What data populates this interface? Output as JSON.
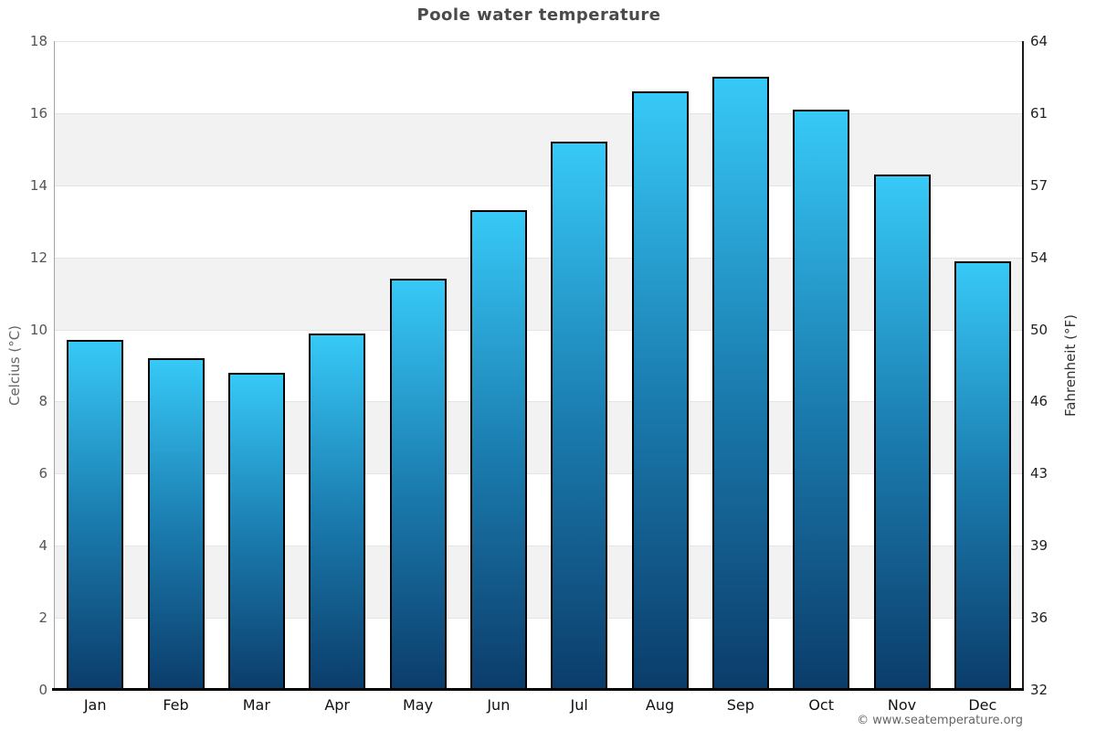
{
  "chart_data": {
    "type": "bar",
    "title": "Poole water temperature",
    "categories": [
      "Jan",
      "Feb",
      "Mar",
      "Apr",
      "May",
      "Jun",
      "Jul",
      "Aug",
      "Sep",
      "Oct",
      "Nov",
      "Dec"
    ],
    "values": [
      9.7,
      9.2,
      8.8,
      9.9,
      11.4,
      13.3,
      15.2,
      16.6,
      17.0,
      16.1,
      14.3,
      11.9
    ],
    "unit": "°C",
    "ylim": [
      0,
      18
    ],
    "grid": "alternating-bands",
    "legend": "none",
    "y_axis_left": {
      "label": "Celcius (°C)",
      "ticks": [
        0,
        2,
        4,
        6,
        8,
        10,
        12,
        14,
        16,
        18
      ]
    },
    "y_axis_right": {
      "label": "Fahrenheit (°F)",
      "ticks": [
        {
          "celsius": 0,
          "label": "32"
        },
        {
          "celsius": 2,
          "label": "36"
        },
        {
          "celsius": 4,
          "label": "39"
        },
        {
          "celsius": 6,
          "label": "43"
        },
        {
          "celsius": 8,
          "label": "46"
        },
        {
          "celsius": 10,
          "label": "50"
        },
        {
          "celsius": 12,
          "label": "54"
        },
        {
          "celsius": 14,
          "label": "57"
        },
        {
          "celsius": 16,
          "label": "61"
        },
        {
          "celsius": 18,
          "label": "64"
        }
      ]
    },
    "colors": {
      "bar_gradient_top": "#37c9f7",
      "bar_gradient_mid": "#1b7db0",
      "bar_gradient_bottom": "#0b3c6a",
      "bar_border": "#000000",
      "band_gray": "#f2f2f2",
      "background": "#ffffff",
      "title_text": "#4a4a4a"
    }
  },
  "footer": {
    "copyright": "© www.seatemperature.org"
  }
}
